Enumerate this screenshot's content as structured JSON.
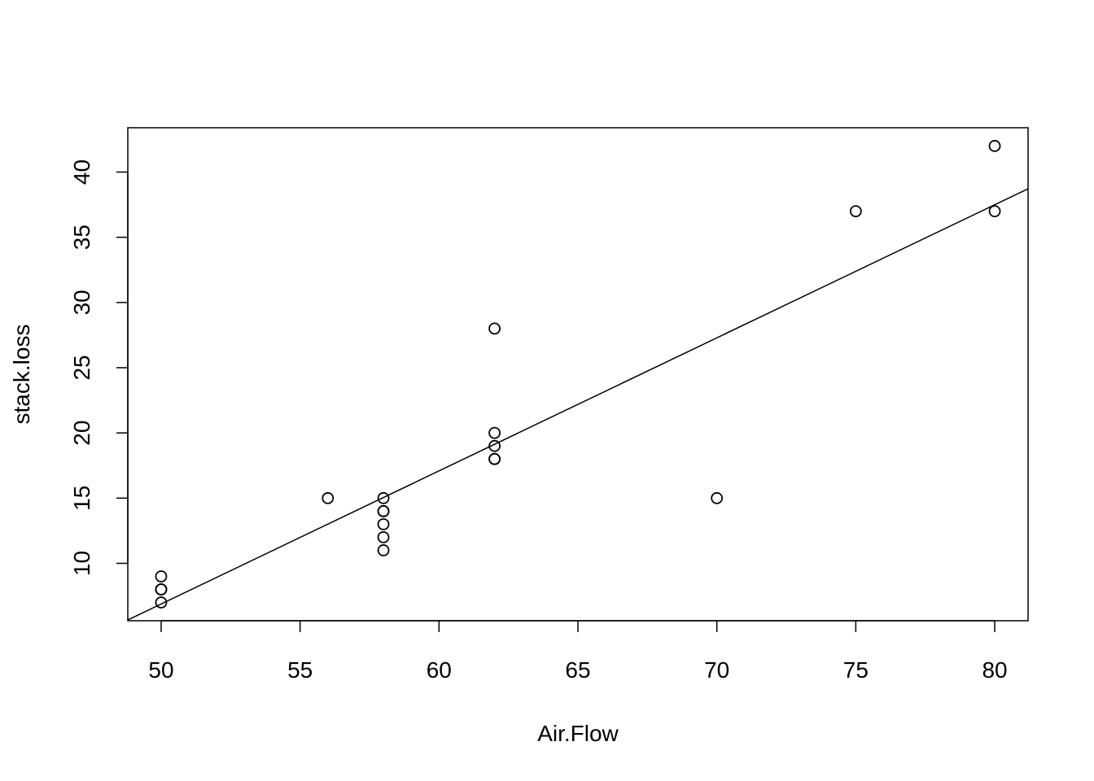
{
  "chart_data": {
    "type": "scatter",
    "title": "",
    "xlabel": "Air.Flow",
    "ylabel": "stack.loss",
    "xlim": [
      48.8,
      81.2
    ],
    "ylim": [
      5.6,
      43.4
    ],
    "x_ticks": [
      50,
      55,
      60,
      65,
      70,
      75,
      80
    ],
    "y_ticks": [
      10,
      15,
      20,
      25,
      30,
      35,
      40
    ],
    "grid": false,
    "legend": "none",
    "points": [
      {
        "x": 80,
        "y": 42
      },
      {
        "x": 80,
        "y": 37
      },
      {
        "x": 75,
        "y": 37
      },
      {
        "x": 62,
        "y": 28
      },
      {
        "x": 62,
        "y": 18
      },
      {
        "x": 62,
        "y": 18
      },
      {
        "x": 62,
        "y": 19
      },
      {
        "x": 62,
        "y": 20
      },
      {
        "x": 58,
        "y": 15
      },
      {
        "x": 58,
        "y": 14
      },
      {
        "x": 58,
        "y": 14
      },
      {
        "x": 58,
        "y": 13
      },
      {
        "x": 58,
        "y": 11
      },
      {
        "x": 58,
        "y": 12
      },
      {
        "x": 50,
        "y": 8
      },
      {
        "x": 50,
        "y": 7
      },
      {
        "x": 50,
        "y": 8
      },
      {
        "x": 50,
        "y": 8
      },
      {
        "x": 50,
        "y": 9
      },
      {
        "x": 56,
        "y": 15
      },
      {
        "x": 70,
        "y": 15
      }
    ],
    "fit_line": {
      "intercept": -44.13,
      "slope": 1.0203
    },
    "colors": {
      "points": "#000000",
      "line": "#000000",
      "box": "#000000"
    }
  }
}
